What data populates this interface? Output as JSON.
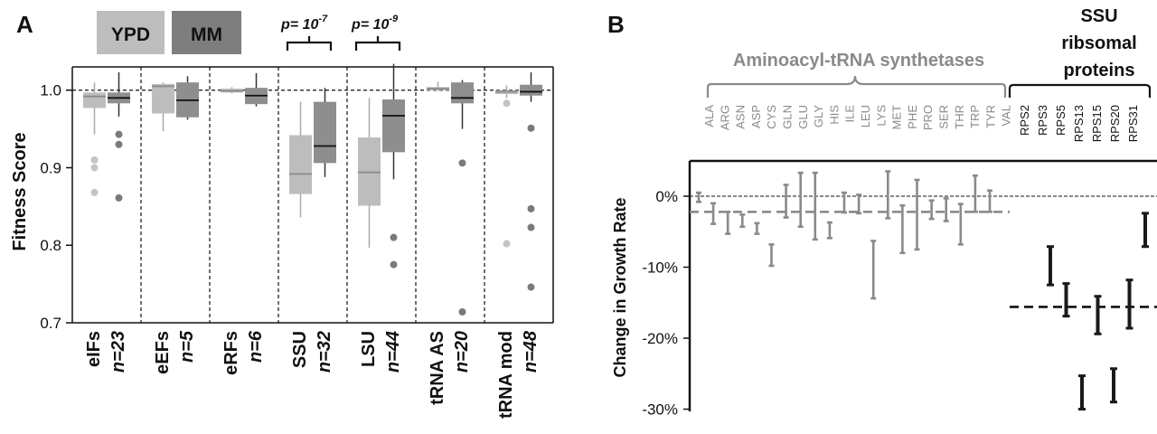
{
  "panel_a": {
    "label": "A",
    "legend": [
      {
        "label": "YPD",
        "color": "#bdbdbd",
        "text_color": "#8f8f8f"
      },
      {
        "label": "MM",
        "color": "#7e7e7e",
        "text_color": "#111111"
      }
    ],
    "pvalues": [
      {
        "text": "p= 10",
        "exp": "-7"
      },
      {
        "text": "p= 10",
        "exp": "-9"
      }
    ],
    "ylabel": "Fitness Score",
    "yticks": [
      "1.0",
      "0.9",
      "0.8",
      "0.7"
    ]
  },
  "panel_b": {
    "label": "B",
    "ylabel": "Change in Growth Rate",
    "yticks": [
      "0%",
      "-10%",
      "-20%",
      "-30%"
    ],
    "group_aa": "Aminoacyl-tRNA synthetases",
    "group_ssu": [
      "SSU",
      "ribsomal",
      "proteins"
    ]
  },
  "chart_data": [
    {
      "type": "box",
      "panel": "A",
      "ylabel": "Fitness Score",
      "ylim": [
        0.7,
        1.03
      ],
      "reference_line": 1.0,
      "categories": [
        {
          "name": "eIFs",
          "n": "n=23"
        },
        {
          "name": "eEFs",
          "n": "n=5"
        },
        {
          "name": "eRFs",
          "n": "n=6"
        },
        {
          "name": "SSU",
          "n": "n=32"
        },
        {
          "name": "LSU",
          "n": "n=44"
        },
        {
          "name": "tRNA AS",
          "n": "n=20"
        },
        {
          "name": "tRNA mod",
          "n": "n=48"
        }
      ],
      "series": [
        {
          "name": "YPD",
          "boxes": [
            {
              "lo": 0.943,
              "q1": 0.977,
              "med": 0.992,
              "q3": 0.997,
              "hi": 1.01,
              "outliers": [
                0.91,
                0.9,
                0.868
              ]
            },
            {
              "lo": 0.947,
              "q1": 0.97,
              "med": 1.005,
              "q3": 1.008,
              "hi": 1.01,
              "outliers": []
            },
            {
              "lo": 0.996,
              "q1": 0.997,
              "med": 0.999,
              "q3": 1.002,
              "hi": 1.004,
              "outliers": []
            },
            {
              "lo": 0.836,
              "q1": 0.866,
              "med": 0.892,
              "q3": 0.942,
              "hi": 0.985,
              "outliers": []
            },
            {
              "lo": 0.797,
              "q1": 0.851,
              "med": 0.894,
              "q3": 0.939,
              "hi": 0.99,
              "outliers": []
            },
            {
              "lo": 0.999,
              "q1": 1.0,
              "med": 1.002,
              "q3": 1.004,
              "hi": 1.011,
              "outliers": []
            },
            {
              "lo": 0.99,
              "q1": 0.995,
              "med": 0.998,
              "q3": 1.0,
              "hi": 1.006,
              "outliers": [
                0.983,
                0.802
              ]
            }
          ]
        },
        {
          "name": "MM",
          "boxes": [
            {
              "lo": 0.966,
              "q1": 0.983,
              "med": 0.99,
              "q3": 0.997,
              "hi": 1.023,
              "outliers": [
                0.943,
                0.93,
                0.861
              ]
            },
            {
              "lo": 0.962,
              "q1": 0.965,
              "med": 0.987,
              "q3": 1.01,
              "hi": 1.018,
              "outliers": []
            },
            {
              "lo": 0.979,
              "q1": 0.982,
              "med": 0.993,
              "q3": 1.003,
              "hi": 1.022,
              "outliers": []
            },
            {
              "lo": 0.888,
              "q1": 0.906,
              "med": 0.928,
              "q3": 0.985,
              "hi": 1.003,
              "outliers": []
            },
            {
              "lo": 0.885,
              "q1": 0.92,
              "med": 0.967,
              "q3": 0.988,
              "hi": 1.034,
              "outliers": [
                0.81,
                0.775
              ]
            },
            {
              "lo": 0.95,
              "q1": 0.983,
              "med": 0.99,
              "q3": 1.01,
              "hi": 1.013,
              "outliers": [
                0.906,
                0.714
              ]
            },
            {
              "lo": 0.985,
              "q1": 0.993,
              "med": 0.998,
              "q3": 1.007,
              "hi": 1.023,
              "outliers": [
                0.951,
                0.847,
                0.823,
                0.746
              ]
            }
          ]
        }
      ]
    },
    {
      "type": "range",
      "panel": "B",
      "ylabel": "Change in Growth Rate",
      "ylim": [
        -30,
        3
      ],
      "reference_lines": [
        {
          "value": 0,
          "style": "thin-dashed",
          "color": "#111111"
        },
        {
          "value": -2.2,
          "style": "thick-dashed",
          "color": "#8a8a8a",
          "group": "Aminoacyl-tRNA synthetases"
        },
        {
          "value": -15.6,
          "style": "thick-dashed",
          "color": "#111111",
          "group": "SSU ribsomal proteins"
        }
      ],
      "groups": [
        {
          "name": "Aminoacyl-tRNA synthetases",
          "color": "#8a8a8a",
          "items": [
            {
              "label": "ALA",
              "lo": -0.8,
              "hi": 0.5
            },
            {
              "label": "ARG",
              "lo": -3.9,
              "hi": -1.0
            },
            {
              "label": "ASN",
              "lo": -5.3,
              "hi": -2.2
            },
            {
              "label": "ASP",
              "lo": -4.3,
              "hi": -2.6
            },
            {
              "label": "CYS",
              "lo": -5.3,
              "hi": -3.8
            },
            {
              "label": "GLN",
              "lo": -9.8,
              "hi": -6.8
            },
            {
              "label": "GLU",
              "lo": -3.0,
              "hi": 1.6
            },
            {
              "label": "GLY",
              "lo": -4.3,
              "hi": 3.3
            },
            {
              "label": "HIS",
              "lo": -6.1,
              "hi": 3.3
            },
            {
              "label": "ILE",
              "lo": -5.9,
              "hi": -3.7
            },
            {
              "label": "LEU",
              "lo": -2.3,
              "hi": 0.5
            },
            {
              "label": "LYS",
              "lo": -2.4,
              "hi": 0.2
            },
            {
              "label": "MET",
              "lo": -14.4,
              "hi": -6.3
            },
            {
              "label": "PHE",
              "lo": -3.1,
              "hi": 3.5
            },
            {
              "label": "PRO",
              "lo": -8.0,
              "hi": -1.3
            },
            {
              "label": "SER",
              "lo": -7.5,
              "hi": 2.3
            },
            {
              "label": "THR",
              "lo": -3.2,
              "hi": -0.6
            },
            {
              "label": "TRP",
              "lo": -3.5,
              "hi": -0.3
            },
            {
              "label": "TYR",
              "lo": -6.8,
              "hi": -1.1
            },
            {
              "label": "VAL",
              "lo": -2.2,
              "hi": 2.9
            },
            {
              "label": "",
              "lo": -2.2,
              "hi": 0.8
            }
          ]
        },
        {
          "name": "SSU ribsomal proteins",
          "color": "#1a1a1a",
          "items": [
            {
              "label": "RPS2",
              "lo": -12.5,
              "hi": -7.1
            },
            {
              "label": "RPS3",
              "lo": -16.9,
              "hi": -12.3
            },
            {
              "label": "RPS5",
              "lo": -30.0,
              "hi": -25.3
            },
            {
              "label": "RPS13",
              "lo": -19.4,
              "hi": -14.1
            },
            {
              "label": "RPS15",
              "lo": -29.0,
              "hi": -24.3
            },
            {
              "label": "RPS20",
              "lo": -18.6,
              "hi": -11.8
            },
            {
              "label": "RPS31",
              "lo": -7.1,
              "hi": -2.4
            }
          ]
        }
      ]
    }
  ]
}
